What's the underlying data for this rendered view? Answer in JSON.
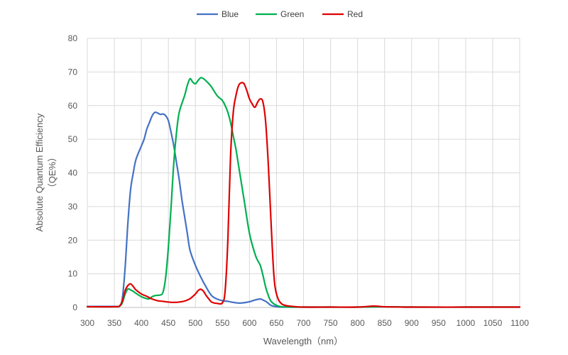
{
  "chart_data": {
    "type": "line",
    "xlabel": "Wavelength（nm）",
    "ylabel_line1": "Absolute Quantum Efficiency",
    "ylabel_line2": "（QE%）",
    "xlim": [
      300,
      1100
    ],
    "ylim": [
      0,
      80
    ],
    "xticks": [
      300,
      350,
      400,
      450,
      500,
      550,
      600,
      650,
      700,
      750,
      800,
      850,
      900,
      950,
      1000,
      1050,
      1100
    ],
    "yticks": [
      0,
      10,
      20,
      30,
      40,
      50,
      60,
      70,
      80
    ],
    "grid": true,
    "legend_position": "top",
    "series": [
      {
        "name": "Blue",
        "color": "#4472C4",
        "x": [
          300,
          350,
          360,
          365,
          370,
          375,
          380,
          385,
          390,
          400,
          405,
          410,
          415,
          420,
          425,
          430,
          435,
          440,
          445,
          450,
          455,
          460,
          465,
          470,
          475,
          480,
          485,
          490,
          500,
          510,
          520,
          530,
          540,
          550,
          560,
          570,
          580,
          590,
          600,
          610,
          620,
          625,
          630,
          635,
          640,
          650,
          660,
          680,
          700,
          750,
          800,
          850,
          900,
          1000,
          1100
        ],
        "y": [
          0.3,
          0.3,
          0.5,
          3,
          12,
          25,
          35,
          40,
          44,
          48,
          50,
          53,
          55,
          57,
          58,
          57.8,
          57.4,
          57.5,
          57,
          55.5,
          52,
          48,
          43,
          38,
          32,
          27,
          22,
          17,
          12.5,
          9,
          6,
          3.5,
          2.5,
          2,
          1.8,
          1.5,
          1.3,
          1.4,
          1.7,
          2.2,
          2.5,
          2.2,
          1.8,
          1.2,
          0.6,
          0.2,
          0.1,
          0.1,
          0.1,
          0.1,
          0.1,
          0.2,
          0.1,
          0.1,
          0.1
        ]
      },
      {
        "name": "Green",
        "color": "#00B050",
        "x": [
          300,
          350,
          360,
          365,
          370,
          375,
          380,
          385,
          390,
          400,
          410,
          415,
          420,
          425,
          430,
          435,
          440,
          445,
          450,
          455,
          460,
          465,
          470,
          480,
          485,
          490,
          495,
          500,
          505,
          510,
          515,
          520,
          525,
          530,
          540,
          550,
          555,
          560,
          565,
          570,
          575,
          580,
          590,
          600,
          610,
          615,
          620,
          625,
          630,
          635,
          640,
          650,
          660,
          680,
          700,
          750,
          800,
          850,
          900,
          1000,
          1100
        ],
        "y": [
          0.2,
          0.2,
          0.4,
          1.5,
          4,
          5.5,
          5.2,
          4.8,
          4.2,
          3.2,
          2.6,
          2.6,
          3.2,
          3.5,
          3.6,
          3.7,
          4.5,
          9,
          18,
          30,
          43,
          52,
          58,
          63,
          66,
          68,
          67,
          66.5,
          67.5,
          68.3,
          68,
          67.3,
          66.5,
          65.5,
          63,
          61.5,
          60,
          58,
          55,
          51,
          47,
          42,
          32,
          22,
          16,
          14,
          12.5,
          9.5,
          6,
          3.5,
          1.8,
          0.6,
          0.2,
          0.1,
          0.1,
          0.1,
          0.1,
          0.2,
          0.1,
          0.1,
          0.1
        ]
      },
      {
        "name": "Red",
        "color": "#E00000",
        "x": [
          300,
          350,
          360,
          365,
          370,
          375,
          380,
          385,
          390,
          400,
          410,
          420,
          430,
          440,
          450,
          460,
          470,
          480,
          490,
          500,
          505,
          510,
          515,
          520,
          525,
          530,
          540,
          550,
          555,
          560,
          565,
          570,
          575,
          580,
          585,
          590,
          595,
          600,
          605,
          610,
          615,
          620,
          625,
          630,
          635,
          640,
          645,
          650,
          660,
          680,
          700,
          750,
          800,
          830,
          850,
          900,
          1000,
          1100
        ],
        "y": [
          0.2,
          0.2,
          0.5,
          2,
          5,
          6.5,
          7,
          6.2,
          5.2,
          4,
          3.3,
          2.5,
          2,
          1.8,
          1.6,
          1.5,
          1.6,
          1.9,
          2.6,
          4,
          5,
          5.4,
          4.8,
          3.5,
          2.5,
          1.6,
          1.2,
          1.4,
          5,
          20,
          45,
          58,
          63,
          66,
          66.8,
          66.5,
          64.5,
          62,
          60.5,
          59.5,
          61,
          62,
          61,
          55,
          42,
          25,
          10,
          4,
          1,
          0.3,
          0.1,
          0.1,
          0.1,
          0.4,
          0.2,
          0.1,
          0.1,
          0.1
        ]
      }
    ]
  }
}
